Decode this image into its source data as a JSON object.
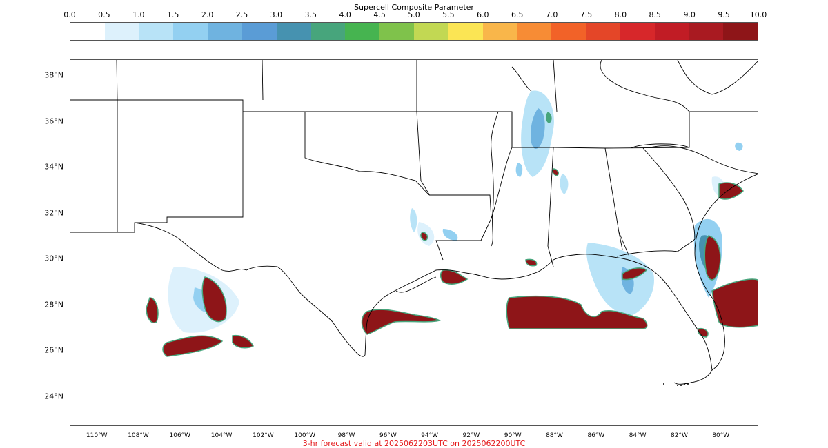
{
  "colorbar": {
    "title": "Supercell Composite Parameter",
    "ticks": [
      "0.0",
      "0.5",
      "1.0",
      "1.5",
      "2.0",
      "2.5",
      "3.0",
      "3.5",
      "4.0",
      "4.5",
      "5.0",
      "5.5",
      "6.0",
      "6.5",
      "7.0",
      "7.5",
      "8.0",
      "8.5",
      "9.0",
      "9.5",
      "10.0"
    ],
    "colors": [
      "#ffffff",
      "#ddf1fc",
      "#b8e3f7",
      "#93d0f1",
      "#6fb3e0",
      "#5a9cd6",
      "#4692b0",
      "#47a57c",
      "#46b450",
      "#7fc24b",
      "#c2d853",
      "#fbe554",
      "#f9b64a",
      "#f78c35",
      "#f26228",
      "#e44628",
      "#d7272a",
      "#c11c25",
      "#a91a21",
      "#8e1518"
    ]
  },
  "map": {
    "lat_labels": [
      "38°N",
      "36°N",
      "34°N",
      "32°N",
      "30°N",
      "28°N",
      "26°N",
      "24°N"
    ],
    "lon_labels": [
      "110°W",
      "108°W",
      "106°W",
      "104°W",
      "102°W",
      "100°W",
      "98°W",
      "96°W",
      "94°W",
      "92°W",
      "90°W",
      "88°W",
      "86°W",
      "84°W",
      "82°W",
      "80°W"
    ],
    "extent": {
      "lon_min": -111.3,
      "lon_max": -78.2,
      "lat_min": 22.7,
      "lat_max": 38.7
    }
  },
  "caption": "3-hr forecast valid at 2025062203UTC on 2025062200UTC"
}
